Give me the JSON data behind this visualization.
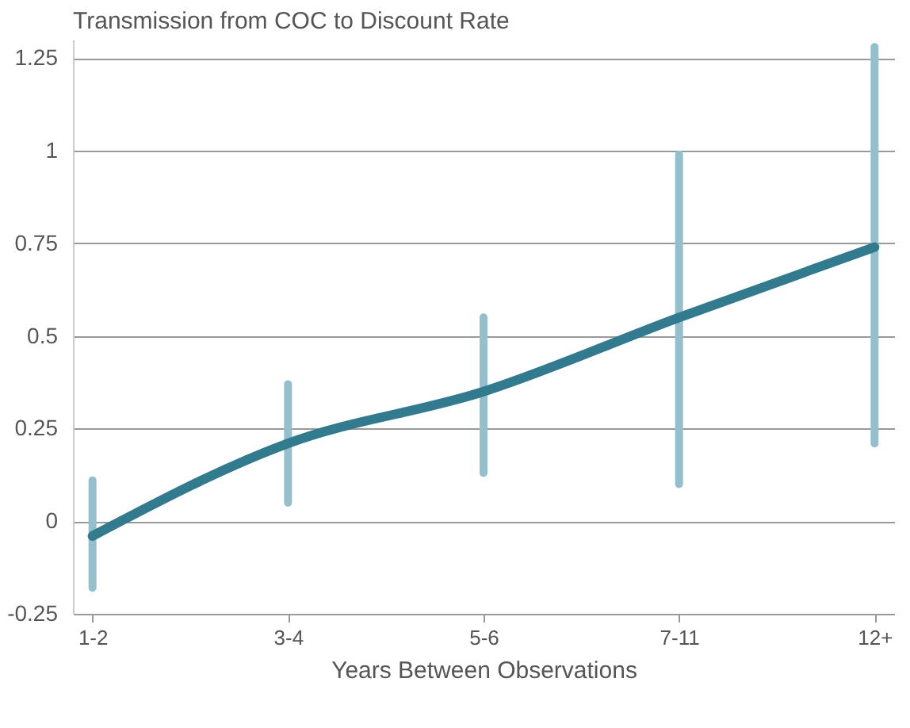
{
  "chart_data": {
    "type": "line",
    "title": "Transmission from COC to Discount Rate",
    "xlabel": "Years Between Observations",
    "categories": [
      "1-2",
      "3-4",
      "5-6",
      "7-11",
      "12+"
    ],
    "ylim": [
      -0.25,
      1.3
    ],
    "yticks": [
      -0.25,
      0,
      0.25,
      0.5,
      0.75,
      1,
      1.25
    ],
    "grid": "y",
    "series": [
      {
        "color": "#327b8f",
        "values": [
          -0.04,
          0.21,
          0.35,
          0.55,
          0.74
        ],
        "errors": [
          [
            -0.18,
            0.11
          ],
          [
            0.05,
            0.37
          ],
          [
            0.13,
            0.55
          ],
          [
            0.1,
            0.99
          ],
          [
            0.21,
            1.28
          ]
        ]
      }
    ]
  }
}
